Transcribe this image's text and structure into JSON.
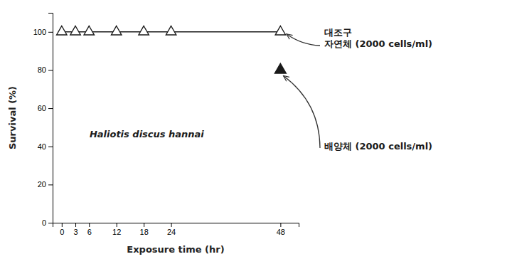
{
  "chart_data": {
    "type": "line",
    "x_label": "Exposure time (hr)",
    "y_label": "Survival (%)",
    "xlim": [
      -2,
      52
    ],
    "ylim": [
      0,
      110
    ],
    "xticks": [
      0,
      3,
      6,
      12,
      18,
      24,
      48
    ],
    "yticks": [
      0,
      20,
      40,
      60,
      80,
      100
    ],
    "series": [
      {
        "x": [
          0,
          3,
          6,
          12,
          18,
          24,
          48
        ],
        "values": [
          100,
          100,
          100,
          100,
          100,
          100,
          100
        ],
        "color": "#1a1a1a",
        "marker": "triangle-open",
        "line_style": "solid"
      },
      {
        "x": [
          48
        ],
        "values": [
          80
        ],
        "color": "#1a1a1a",
        "marker": "triangle",
        "line_style": "none"
      }
    ],
    "annotations": [
      {
        "text": "Haliotis discus hannai"
      },
      {
        "text": "대조구"
      },
      {
        "text": "자연체 (2000 cells/ml)",
        "x": 48,
        "y": 100
      },
      {
        "text": "배양체 (2000 cells/ml)",
        "x": 48,
        "y": 80
      }
    ]
  }
}
